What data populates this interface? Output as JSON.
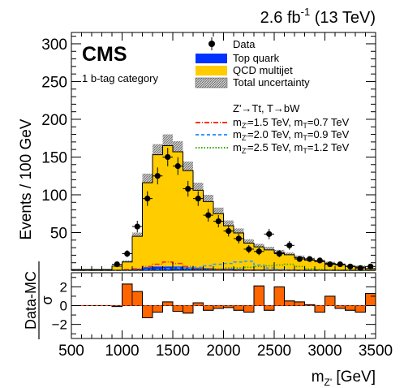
{
  "header": {
    "lumi_value": "2.6 fb",
    "lumi_exp": "-1",
    "energy": " (13 TeV)"
  },
  "labels": {
    "experiment": "CMS",
    "category": "1 b-tag category",
    "signal_header": "Z'→Tt, T→bW"
  },
  "legend": {
    "data": "Data",
    "top": "Top quark",
    "qcd": "QCD multijet",
    "unc": "Total uncertainty",
    "sig1": {
      "mzp": "=1.5 TeV, m",
      "mt": "=0.7 TeV"
    },
    "sig2": {
      "mzp": "=2.0 TeV, m",
      "mt": "=0.9 TeV"
    },
    "sig3": {
      "mzp": "=2.5 TeV, m",
      "mt": "=1.2 TeV"
    },
    "m": "m",
    "sub_zp": "Z'",
    "sub_t": "T"
  },
  "axes": {
    "ylabel": "Events / 100 GeV",
    "xlabel_main": "m",
    "xlabel_sub": "Z'",
    "xlabel_unit": " [GeV]",
    "ratio_label_top": "Data-MC",
    "ratio_label_bottom": "σ",
    "xticks": [
      "500",
      "1000",
      "1500",
      "2000",
      "2500",
      "3000",
      "3500"
    ],
    "yticks": [
      "50",
      "100",
      "150",
      "200",
      "250",
      "300"
    ],
    "rticks": [
      "2",
      "0",
      "−2"
    ]
  },
  "colors": {
    "qcd": "#ffcc00",
    "top": "#0033ff",
    "sig1": "#ff3300",
    "sig2": "#3399ff",
    "sig3": "#33aa00",
    "pull": "#ff6600"
  },
  "chart_data": {
    "type": "bar",
    "title": "",
    "xlabel": "m_Z' [GeV]",
    "ylabel": "Events / 100 GeV",
    "xlim": [
      500,
      3500
    ],
    "ylim": [
      0,
      315
    ],
    "bin_width": 100,
    "bin_edges": [
      500,
      600,
      700,
      800,
      900,
      1000,
      1100,
      1200,
      1300,
      1400,
      1500,
      1600,
      1700,
      1800,
      1900,
      2000,
      2100,
      2200,
      2300,
      2400,
      2500,
      2600,
      2700,
      2800,
      2900,
      3000,
      3100,
      3200,
      3300,
      3400,
      3500
    ],
    "series": [
      {
        "name": "Data",
        "kind": "points",
        "x": [
          550,
          650,
          750,
          850,
          950,
          1050,
          1150,
          1250,
          1350,
          1450,
          1550,
          1650,
          1750,
          1850,
          1950,
          2050,
          2150,
          2250,
          2350,
          2450,
          2550,
          2650,
          2750,
          2850,
          2950,
          3050,
          3150,
          3250,
          3350,
          3450
        ],
        "values": [
          0,
          0,
          0,
          0,
          8,
          22,
          58,
          95,
          125,
          150,
          138,
          108,
          95,
          73,
          65,
          52,
          42,
          28,
          25,
          48,
          22,
          33,
          15,
          15,
          13,
          8,
          8,
          5,
          3,
          5
        ]
      },
      {
        "name": "QCD multijet",
        "kind": "stack",
        "values": [
          0,
          0,
          0,
          0,
          5,
          10,
          43,
          112,
          148,
          160,
          152,
          128,
          103,
          88,
          73,
          57,
          48,
          35,
          30,
          26,
          22,
          20,
          16,
          13,
          11,
          9,
          7,
          5,
          4,
          2
        ]
      },
      {
        "name": "Top quark",
        "kind": "stack",
        "values": [
          0,
          0,
          0,
          0,
          0.5,
          1,
          2,
          4,
          5,
          5,
          5,
          4,
          3,
          3,
          2,
          2,
          1.5,
          1,
          1,
          1,
          1,
          0.5,
          0.5,
          0.5,
          0.5,
          0.3,
          0.3,
          0.2,
          0.2,
          0.1
        ]
      },
      {
        "name": "Total uncertainty",
        "kind": "band",
        "values": [
          0,
          0,
          0,
          0,
          1,
          2,
          5,
          12,
          14,
          15,
          14,
          12,
          10,
          9,
          8,
          7,
          6,
          5,
          4,
          4,
          4,
          3,
          3,
          3,
          2,
          2,
          2,
          2,
          2,
          1
        ]
      },
      {
        "name": "m_Z'=1.5 TeV, m_T=0.7 TeV",
        "kind": "line",
        "style": "dash-dot",
        "values": [
          0,
          0,
          0,
          0,
          0,
          1,
          2,
          5,
          8,
          11,
          9,
          5,
          3,
          2,
          1,
          0.5,
          0,
          0,
          0,
          0,
          0,
          0,
          0,
          0,
          0,
          0,
          0,
          0,
          0,
          0
        ]
      },
      {
        "name": "m_Z'=2.0 TeV, m_T=0.9 TeV",
        "kind": "line",
        "style": "dashed",
        "values": [
          0,
          0,
          0,
          0,
          0,
          0,
          0,
          1,
          1,
          2,
          3,
          3,
          4,
          6,
          8,
          9,
          11,
          12,
          7,
          3,
          1,
          0.5,
          0,
          0,
          0,
          0,
          0,
          0,
          0,
          0
        ]
      },
      {
        "name": "m_Z'=2.5 TeV, m_T=1.2 TeV",
        "kind": "line",
        "style": "dotted",
        "values": [
          0,
          0,
          0,
          0,
          0,
          0,
          0,
          0,
          0,
          0,
          0.5,
          1,
          1,
          2,
          2,
          3,
          3,
          4,
          5,
          6,
          7,
          8,
          5,
          2,
          1,
          0.5,
          0,
          0,
          0,
          0
        ]
      },
      {
        "name": "(Data-MC)/σ",
        "kind": "ratio",
        "values": [
          0,
          0,
          0,
          0,
          -0.1,
          2.3,
          1.5,
          -1.3,
          -0.7,
          0.4,
          -0.6,
          -0.8,
          0.3,
          -0.5,
          -0.3,
          -0.2,
          -0.5,
          -0.7,
          2.1,
          -0.5,
          2.0,
          0.5,
          0.4,
          0.1,
          -0.7,
          1.0,
          -0.3,
          -0.5,
          -0.7,
          1.3
        ],
        "ylim": [
          -3.5,
          3.5
        ]
      }
    ]
  }
}
